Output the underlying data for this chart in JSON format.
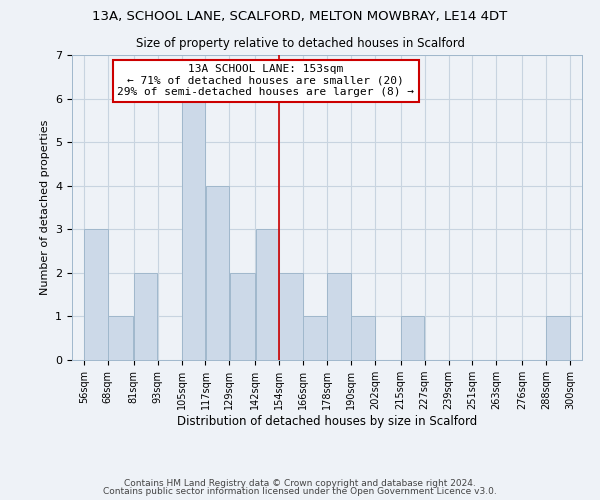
{
  "title1": "13A, SCHOOL LANE, SCALFORD, MELTON MOWBRAY, LE14 4DT",
  "title2": "Size of property relative to detached houses in Scalford",
  "xlabel": "Distribution of detached houses by size in Scalford",
  "ylabel": "Number of detached properties",
  "bin_edges": [
    56,
    68,
    81,
    93,
    105,
    117,
    129,
    142,
    154,
    166,
    178,
    190,
    202,
    215,
    227,
    239,
    251,
    263,
    276,
    288,
    300
  ],
  "bar_heights": [
    3,
    1,
    2,
    0,
    6,
    4,
    2,
    3,
    2,
    1,
    2,
    1,
    0,
    1,
    0,
    0,
    0,
    0,
    0,
    1
  ],
  "bar_color": "#ccd9e8",
  "bar_edgecolor": "#a0b8cc",
  "grid_color": "#c8d4e0",
  "vline_x": 154,
  "vline_color": "#cc0000",
  "annotation_title": "13A SCHOOL LANE: 153sqm",
  "annotation_line1": "← 71% of detached houses are smaller (20)",
  "annotation_line2": "29% of semi-detached houses are larger (8) →",
  "annotation_box_edgecolor": "#cc0000",
  "annotation_box_facecolor": "#ffffff",
  "ylim": [
    0,
    7
  ],
  "yticks": [
    0,
    1,
    2,
    3,
    4,
    5,
    6,
    7
  ],
  "tick_labels": [
    "56sqm",
    "68sqm",
    "81sqm",
    "93sqm",
    "105sqm",
    "117sqm",
    "129sqm",
    "142sqm",
    "154sqm",
    "166sqm",
    "178sqm",
    "190sqm",
    "202sqm",
    "215sqm",
    "227sqm",
    "239sqm",
    "251sqm",
    "263sqm",
    "276sqm",
    "288sqm",
    "300sqm"
  ],
  "footnote1": "Contains HM Land Registry data © Crown copyright and database right 2024.",
  "footnote2": "Contains public sector information licensed under the Open Government Licence v3.0.",
  "background_color": "#eef2f7",
  "title1_fontsize": 9.5,
  "title2_fontsize": 8.5,
  "xlabel_fontsize": 8.5,
  "ylabel_fontsize": 8,
  "tick_fontsize": 7,
  "annotation_fontsize": 8,
  "footnote_fontsize": 6.5
}
